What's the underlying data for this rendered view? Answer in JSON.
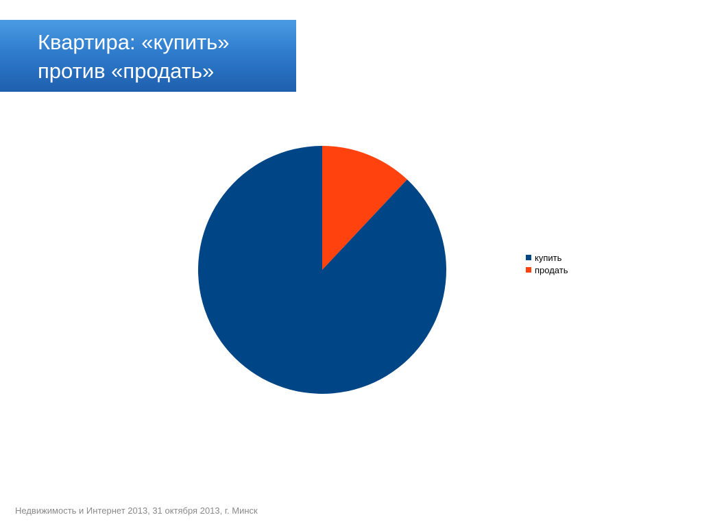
{
  "slide": {
    "title_lines": [
      "Квартира: «купить»",
      "против «продать»"
    ],
    "footer": "Недвижимость и Интернет 2013, 31 октября 2013, г. Минск"
  },
  "chart_data": {
    "type": "pie",
    "title": "",
    "categories": [
      "купить",
      "продать"
    ],
    "values": [
      88,
      12
    ],
    "colors": [
      "#004586",
      "#ff420e"
    ],
    "start_angle_deg": 0,
    "direction": "clockwise-from-top, second slice first",
    "legend_position": "right",
    "data_labels": false
  }
}
